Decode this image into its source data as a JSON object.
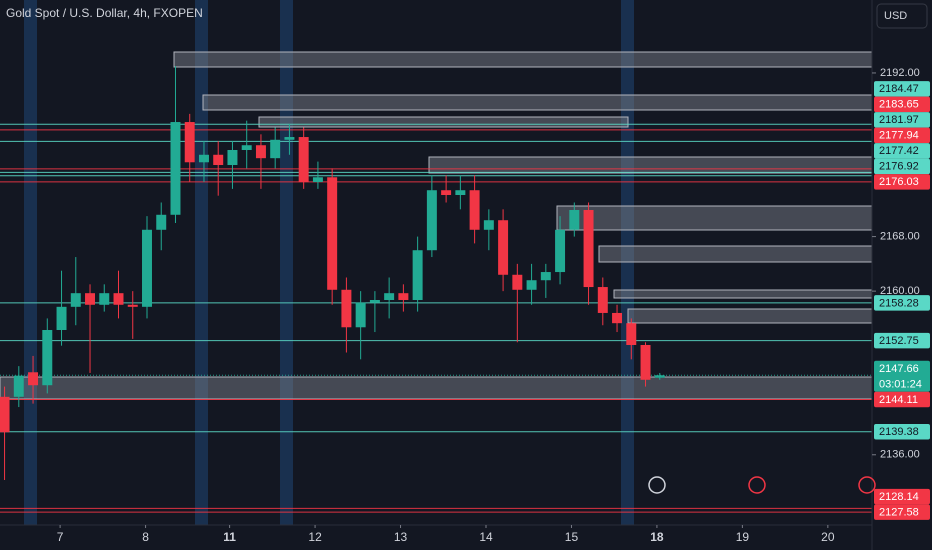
{
  "chart_data": {
    "type": "candlestick",
    "title": "Gold Spot / U.S. Dollar, 4h, FXOPEN",
    "currency": "USD",
    "x": [
      0,
      1,
      2,
      3,
      4,
      5,
      6,
      7,
      8,
      9,
      10,
      11,
      12,
      13,
      14,
      15,
      16,
      17,
      18,
      19,
      20,
      21,
      22,
      23,
      24,
      25,
      26,
      27,
      28,
      29,
      30,
      31,
      32,
      33,
      34,
      35,
      36,
      37,
      38,
      39,
      40,
      41,
      42,
      43,
      44,
      45,
      46
    ],
    "open": [
      2144.5,
      2144.5,
      2148.1,
      2146.2,
      2154.3,
      2157.7,
      2159.7,
      2158.0,
      2159.7,
      2158.0,
      2157.7,
      2169.0,
      2171.2,
      2184.8,
      2178.9,
      2180.0,
      2178.5,
      2180.7,
      2181.4,
      2179.5,
      2182.2,
      2182.6,
      2176.0,
      2176.7,
      2160.2,
      2154.7,
      2158.3,
      2158.7,
      2159.7,
      2158.7,
      2166.0,
      2174.8,
      2174.1,
      2174.8,
      2169.0,
      2170.4,
      2162.4,
      2160.2,
      2161.6,
      2162.8,
      2169.0,
      2171.9,
      2160.6,
      2156.8,
      2155.3,
      2152.1,
      2147.3
    ],
    "high": [
      2146,
      2149,
      2150.5,
      2156,
      2163,
      2165,
      2161,
      2161,
      2163,
      2160,
      2171,
      2173,
      2193,
      2186,
      2182,
      2182,
      2182,
      2185,
      2183,
      2184,
      2184.5,
      2184,
      2179,
      2178,
      2162,
      2160,
      2160,
      2162,
      2161,
      2168,
      2177,
      2177,
      2177,
      2177,
      2172,
      2172,
      2164,
      2164,
      2164,
      2171,
      2173,
      2173,
      2162,
      2158,
      2156,
      2152.5,
      2148
    ],
    "low": [
      2132.3,
      2143,
      2143.5,
      2145,
      2152,
      2155,
      2148,
      2157,
      2156,
      2153,
      2156,
      2166,
      2170,
      2176,
      2176,
      2174,
      2175,
      2178,
      2175,
      2178,
      2180,
      2175,
      2175,
      2158,
      2151,
      2150,
      2154,
      2156,
      2157,
      2157,
      2165,
      2173,
      2172,
      2167,
      2166,
      2160,
      2152.5,
      2158,
      2159,
      2161,
      2168,
      2158,
      2155,
      2154,
      2150,
      2146,
      2147
    ],
    "close": [
      2139.3,
      2147.6,
      2146.2,
      2154.3,
      2157.7,
      2159.7,
      2158.0,
      2159.7,
      2158.0,
      2157.7,
      2169.0,
      2171.2,
      2184.8,
      2178.9,
      2180.0,
      2178.5,
      2180.7,
      2181.4,
      2179.5,
      2182.2,
      2182.6,
      2176.0,
      2176.7,
      2160.2,
      2154.7,
      2158.3,
      2158.7,
      2159.7,
      2158.7,
      2166.0,
      2174.8,
      2174.1,
      2174.8,
      2169.0,
      2170.4,
      2162.4,
      2160.2,
      2161.6,
      2162.8,
      2169.0,
      2171.9,
      2160.6,
      2156.8,
      2155.3,
      2152.1,
      2147.0,
      2147.66
    ],
    "up_color": "#22ab94",
    "down_color": "#f23645",
    "xlim": [
      -0.32,
      60.9
    ],
    "xticks": [
      {
        "value": 3.9,
        "label": "7"
      },
      {
        "value": 9.9,
        "label": "8"
      },
      {
        "value": 15.8,
        "label": "11"
      },
      {
        "value": 21.8,
        "label": "12"
      },
      {
        "value": 27.8,
        "label": "13"
      },
      {
        "value": 33.8,
        "label": "14"
      },
      {
        "value": 39.8,
        "label": "15"
      },
      {
        "value": 45.8,
        "label": "18"
      },
      {
        "value": 51.8,
        "label": "19"
      },
      {
        "value": 57.8,
        "label": "20"
      }
    ],
    "ylim": [
      2125.7,
      2202.7
    ],
    "yticks": [
      {
        "value": 2136,
        "label": "2136.00"
      },
      {
        "value": 2160,
        "label": "2160.00"
      },
      {
        "value": 2168,
        "label": "2168.00"
      },
      {
        "value": 2192,
        "label": "2192.00"
      }
    ],
    "levels": [
      {
        "value": 2184.47,
        "color": "#5ad8c6"
      },
      {
        "value": 2183.65,
        "color": "#f23645"
      },
      {
        "value": 2181.97,
        "color": "#5ad8c6"
      },
      {
        "value": 2177.94,
        "color": "#f23645"
      },
      {
        "value": 2177.42,
        "color": "#5ad8c6"
      },
      {
        "value": 2176.92,
        "color": "#5ad8c6"
      },
      {
        "value": 2176.03,
        "color": "#f23645"
      },
      {
        "value": 2158.28,
        "color": "#5ad8c6"
      },
      {
        "value": 2152.75,
        "color": "#5ad8c6"
      },
      {
        "value": 2147.66,
        "color": "#22ab94",
        "countdown": "03:01:24"
      },
      {
        "value": 2144.11,
        "color": "#f23645"
      },
      {
        "value": 2139.38,
        "color": "#5ad8c6"
      },
      {
        "value": 2128.14,
        "color": "#f23645"
      },
      {
        "value": 2127.58,
        "color": "#f23645"
      }
    ]
  }
}
